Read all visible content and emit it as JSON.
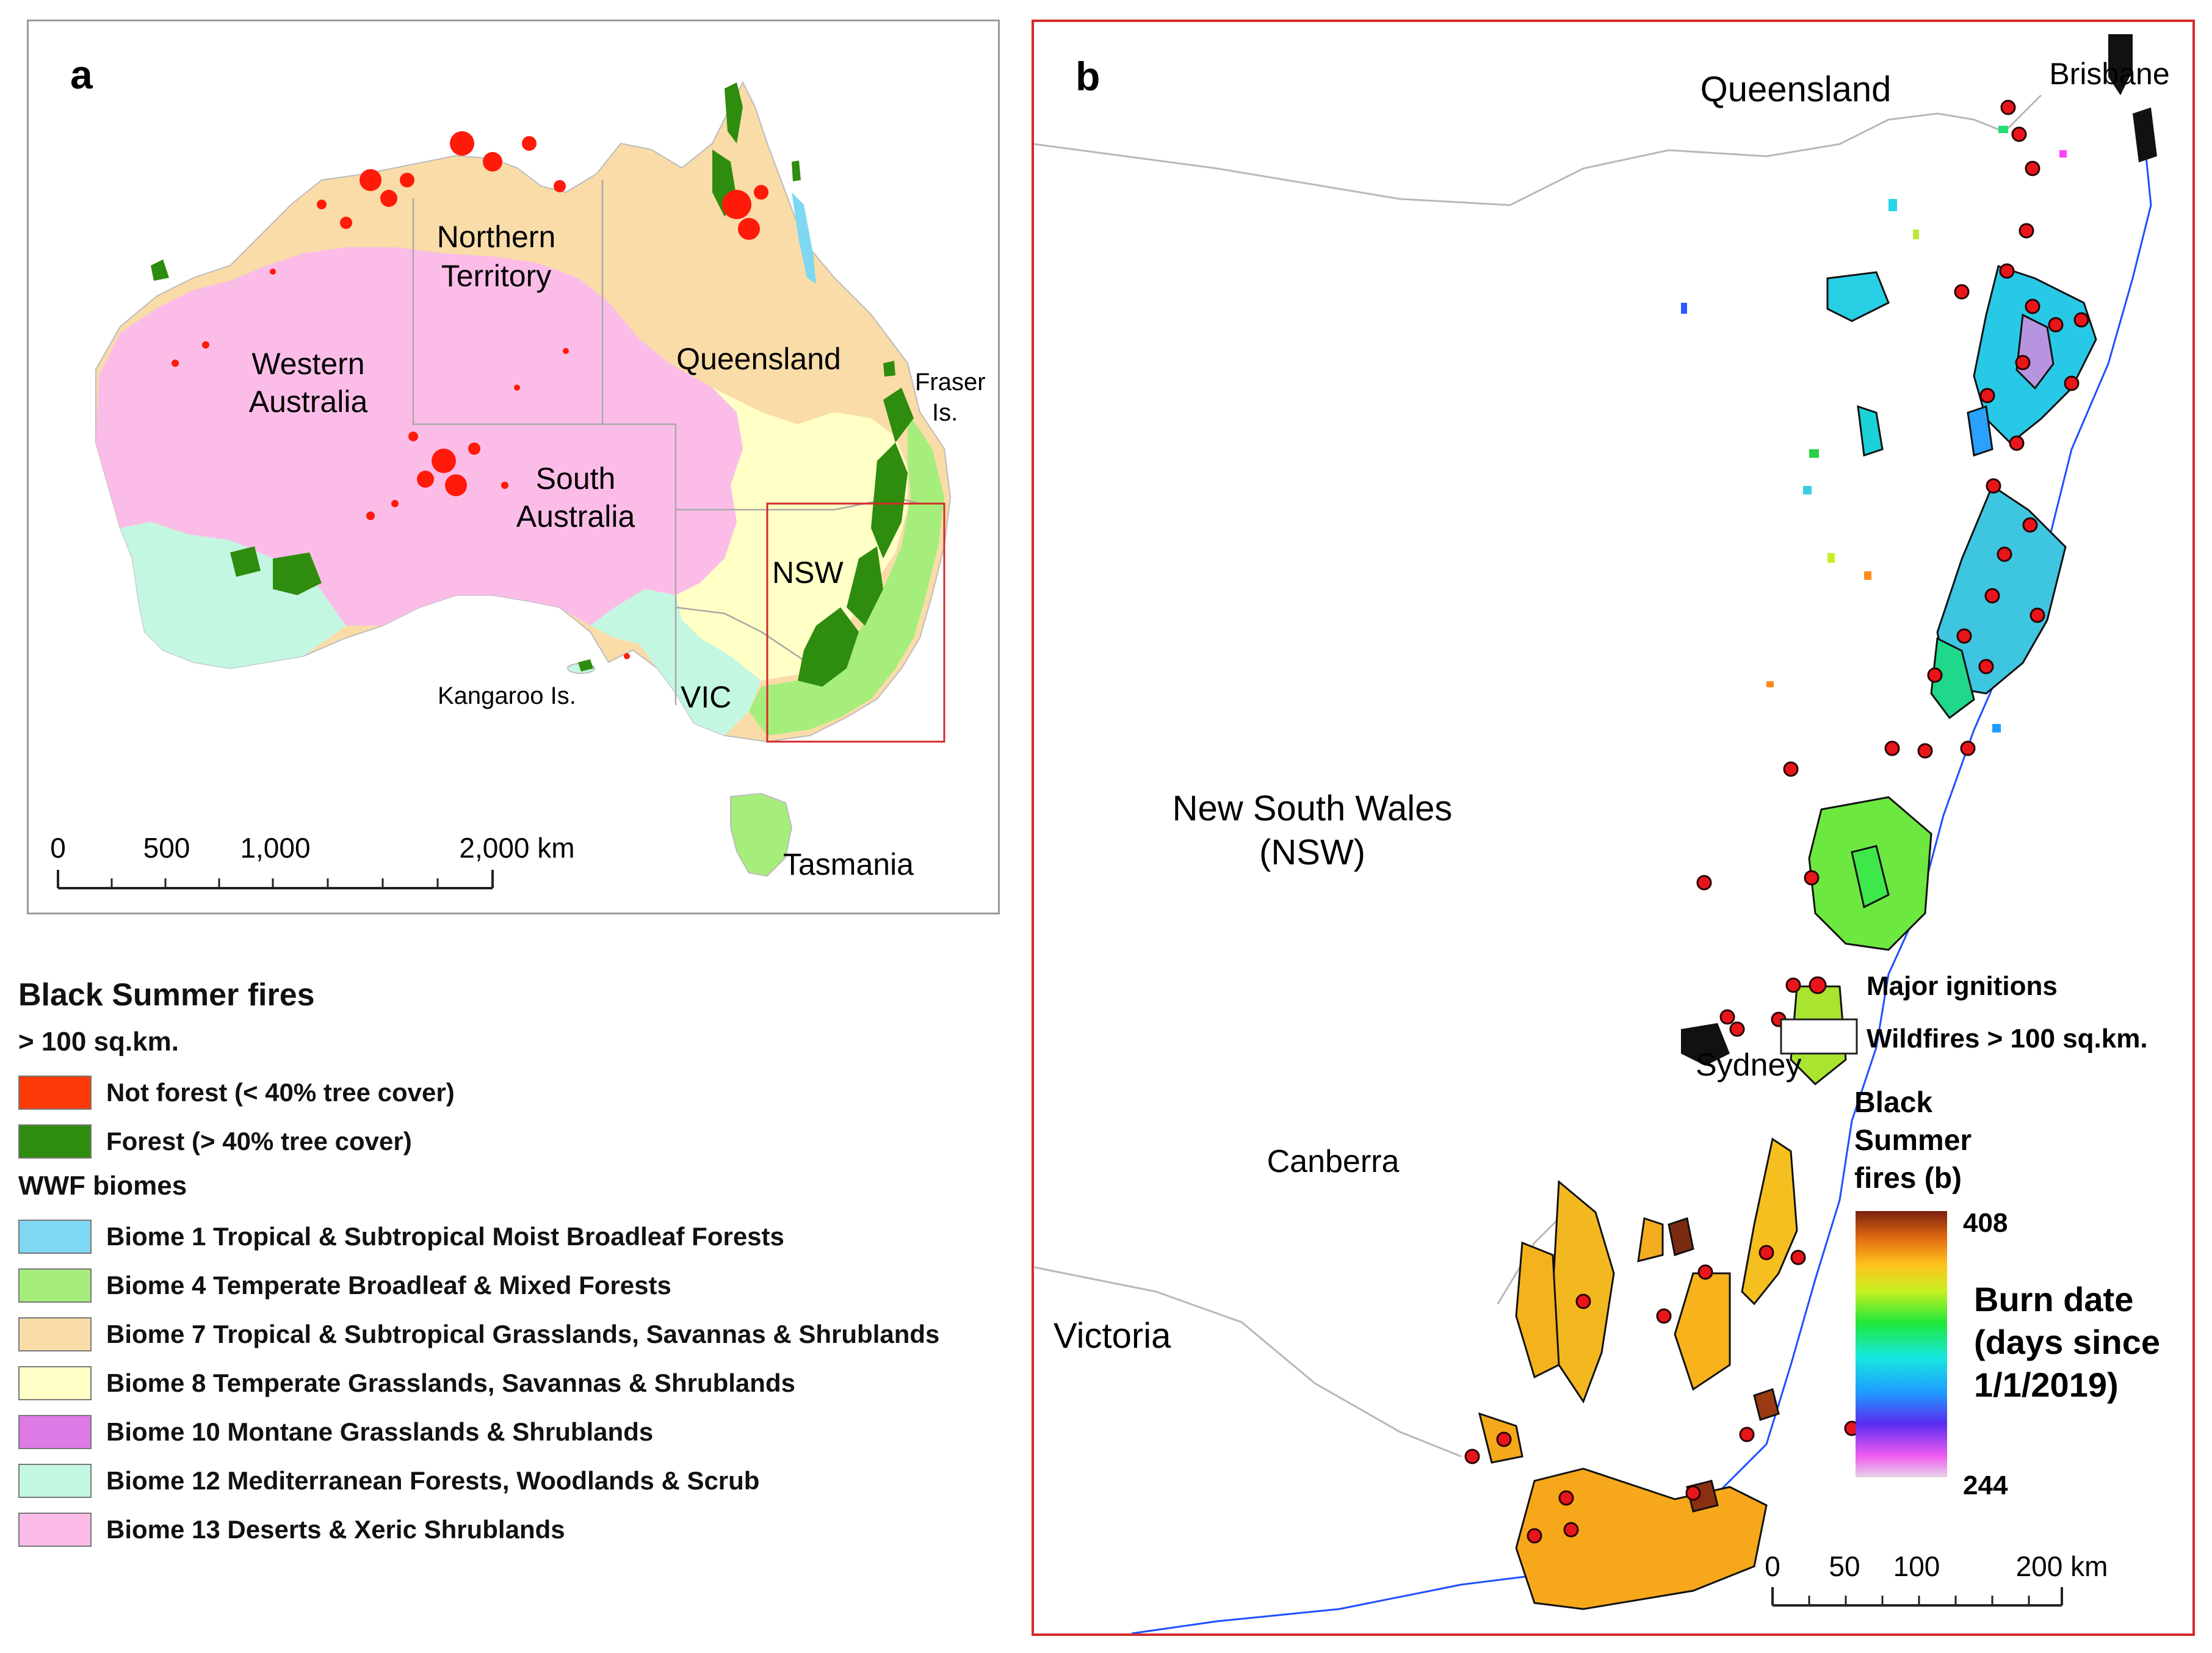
{
  "panel_a": {
    "letter": "a",
    "labels": {
      "northern_territory": [
        "Northern",
        "Territory"
      ],
      "western_australia": [
        "Western",
        "Australia"
      ],
      "south_australia": [
        "South",
        "Australia"
      ],
      "queensland": "Queensland",
      "fraser": [
        "Fraser",
        "Is."
      ],
      "nsw": "NSW",
      "vic": "VIC",
      "kangaroo": "Kangaroo Is.",
      "tasmania": "Tasmania"
    },
    "scale_labels": [
      "0",
      "500",
      "1,000",
      "2,000 km"
    ]
  },
  "panel_b": {
    "letter": "b",
    "labels": {
      "queensland": "Queensland",
      "brisbane": "Brisbane",
      "nsw": [
        "New South Wales",
        "(NSW)"
      ],
      "sydney": "Sydney",
      "canberra": "Canberra",
      "victoria": "Victoria"
    },
    "legend": {
      "ignitions": "Major ignitions",
      "wildfires": "Wildfires > 100 sq.km.",
      "colorbar_title": [
        "Black",
        "Summer",
        "fires (b)"
      ],
      "colorbar_max": "408",
      "colorbar_min": "244",
      "burn_date": [
        "Burn date",
        "(days since",
        "1/1/2019)"
      ]
    },
    "scale_labels": [
      "0",
      "50",
      "100",
      "200 km"
    ]
  },
  "legend": {
    "title": "Black Summer fires",
    "subtitle": "> 100 sq.km.",
    "fire_items": [
      {
        "label": "Not forest (< 40% tree cover)",
        "color": "#ff3a0a"
      },
      {
        "label": "Forest (> 40% tree cover)",
        "color": "#2e8c0e"
      }
    ],
    "biome_title": "WWF biomes",
    "biome_items": [
      {
        "label": "Biome 1 Tropical & Subtropical Moist Broadleaf Forests",
        "color": "#7fd8f2"
      },
      {
        "label": "Biome 4 Temperate Broadleaf & Mixed Forests",
        "color": "#a6ee7c"
      },
      {
        "label": "Biome 7 Tropical & Subtropical Grasslands, Savannas & Shrublands",
        "color": "#f9dca8"
      },
      {
        "label": "Biome 8 Temperate Grasslands, Savannas & Shrublands",
        "color": "#ffffc6"
      },
      {
        "label": "Biome 10 Montane Grasslands & Shrublands",
        "color": "#dd7ae6"
      },
      {
        "label": "Biome 12 Mediterranean Forests, Woodlands & Scrub",
        "color": "#c4f7e2"
      },
      {
        "label": "Biome 13 Deserts & Xeric Shrublands",
        "color": "#fbbde8"
      }
    ]
  }
}
